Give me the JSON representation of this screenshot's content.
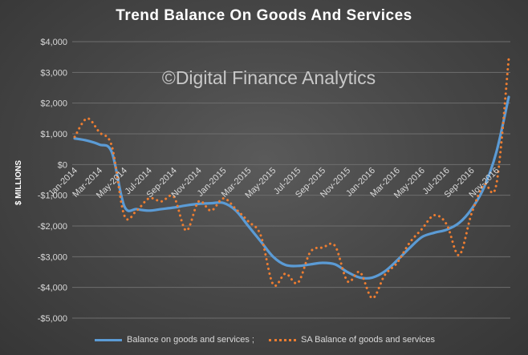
{
  "watermark": "©Digital Finance Analytics",
  "colors": {
    "trend": "#5b9bd5",
    "sa": "#ed7d31",
    "grid": "#6e6e6e",
    "text": "#d9d9d9"
  },
  "chart_data": {
    "type": "line",
    "title": "Trend Balance On Goods And Services",
    "ylabel": "$ MILLIONS",
    "xlabel": "",
    "ylim": [
      -5000,
      4000
    ],
    "yticks": [
      4000,
      3000,
      2000,
      1000,
      0,
      -1000,
      -2000,
      -3000,
      -4000,
      -5000
    ],
    "ytick_labels": [
      "$4,000",
      "$3,000",
      "$2,000",
      "$1,000",
      "$0",
      "-$1,000",
      "-$2,000",
      "-$3,000",
      "-$4,000",
      "-$5,000"
    ],
    "grid": true,
    "legend": "bottom",
    "x": [
      "Jan-2014",
      "Feb-2014",
      "Mar-2014",
      "Apr-2014",
      "May-2014",
      "Jun-2014",
      "Jul-2014",
      "Aug-2014",
      "Sep-2014",
      "Oct-2014",
      "Nov-2014",
      "Dec-2014",
      "Jan-2015",
      "Feb-2015",
      "Mar-2015",
      "Apr-2015",
      "May-2015",
      "Jun-2015",
      "Jul-2015",
      "Aug-2015",
      "Sep-2015",
      "Oct-2015",
      "Nov-2015",
      "Dec-2015",
      "Jan-2016",
      "Feb-2016",
      "Mar-2016",
      "Apr-2016",
      "May-2016",
      "Jun-2016",
      "Jul-2016",
      "Aug-2016",
      "Sep-2016",
      "Oct-2016",
      "Nov-2016",
      "Dec-2016"
    ],
    "x_tick_labels": [
      "Jan-2014",
      "Mar-2014",
      "May-2014",
      "Jul-2014",
      "Sep-2014",
      "Nov-2014",
      "Jan-2015",
      "Mar-2015",
      "May-2015",
      "Jul-2015",
      "Sep-2015",
      "Nov-2015",
      "Jan-2016",
      "Mar-2016",
      "May-2016",
      "Jul-2016",
      "Sep-2016",
      "Nov-2016"
    ],
    "series": [
      {
        "name": "Balance on goods and services ;",
        "style": "solid",
        "values": [
          850,
          780,
          650,
          400,
          -1350,
          -1450,
          -1500,
          -1450,
          -1400,
          -1330,
          -1280,
          -1260,
          -1250,
          -1500,
          -2000,
          -2500,
          -3000,
          -3270,
          -3300,
          -3250,
          -3200,
          -3250,
          -3500,
          -3680,
          -3680,
          -3480,
          -3120,
          -2720,
          -2360,
          -2220,
          -2120,
          -1900,
          -1450,
          -750,
          400,
          2200
        ]
      },
      {
        "name": "SA Balance of goods and services",
        "style": "dotted",
        "values": [
          900,
          1500,
          1050,
          600,
          -1650,
          -1500,
          -1100,
          -1200,
          -1050,
          -2150,
          -1200,
          -1500,
          -1100,
          -1450,
          -1850,
          -2300,
          -3900,
          -3550,
          -3850,
          -2850,
          -2700,
          -2650,
          -3800,
          -3500,
          -4350,
          -3600,
          -3200,
          -2550,
          -2100,
          -1650,
          -1950,
          -2950,
          -1600,
          -650,
          -650,
          3450
        ]
      }
    ]
  }
}
